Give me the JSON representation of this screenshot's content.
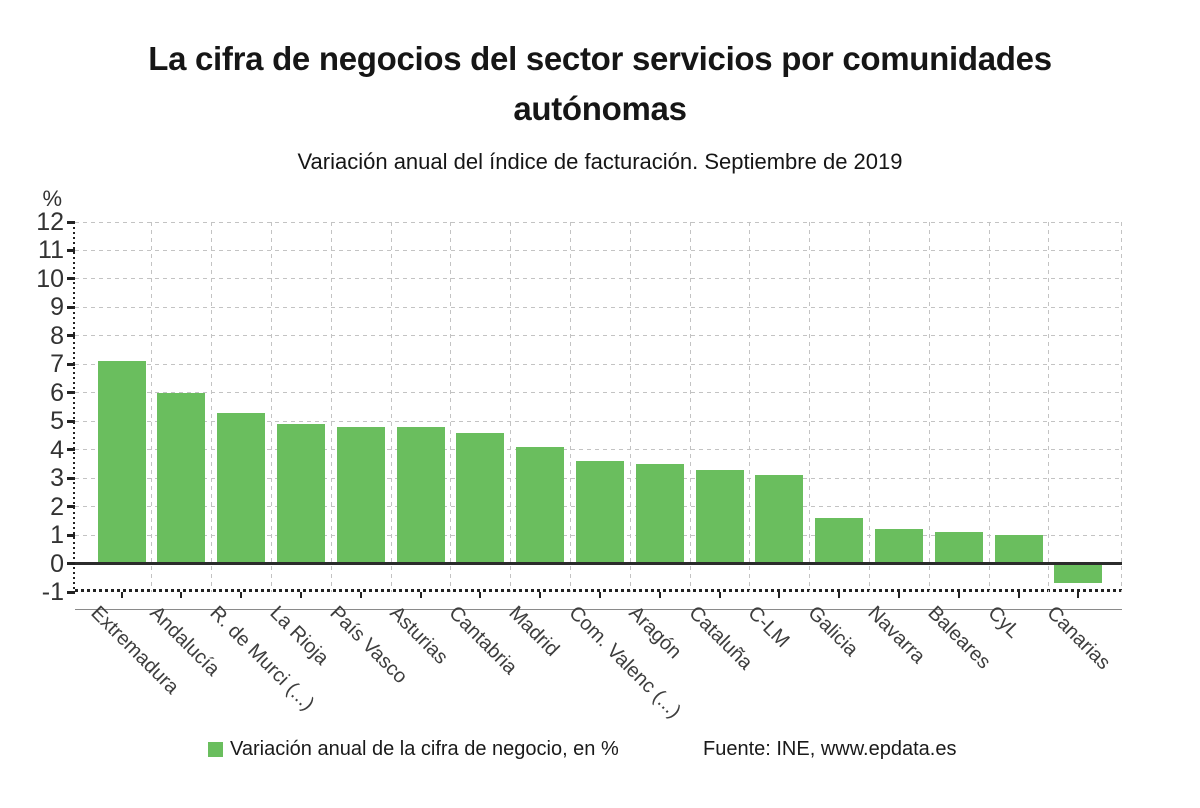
{
  "header": {
    "title_lines": [
      "La cifra de negocios del sector servicios por comunidades",
      "autónomas"
    ],
    "subtitle": "Variación anual del índice de facturación. Septiembre de 2019"
  },
  "chart_data": {
    "type": "bar",
    "title": "La cifra de negocios del sector servicios por comunidades autónomas",
    "subtitle": "Variación anual del índice de facturación. Septiembre de 2019",
    "unit_label": "%",
    "categories": [
      "Extremadura",
      "Andalucía",
      "R. de Murci (...)",
      "La Rioja",
      "País Vasco",
      "Asturias",
      "Cantabria",
      "Madrid",
      "Com. Valenc (...)",
      "Aragón",
      "Cataluña",
      "C-LM",
      "Galicia",
      "Navarra",
      "Baleares",
      "CyL",
      "Canarias"
    ],
    "values": [
      7.1,
      6.0,
      5.3,
      4.9,
      4.8,
      4.8,
      4.6,
      4.1,
      3.6,
      3.5,
      3.3,
      3.1,
      1.6,
      1.2,
      1.1,
      1.0,
      -0.7
    ],
    "series_name": "Variación anual de la cifra de negocio, en %",
    "ylim": [
      -1,
      12
    ],
    "yticks": [
      12,
      11,
      10,
      9,
      8,
      7,
      6,
      5,
      4,
      3,
      2,
      1,
      0,
      -1
    ],
    "grid": true,
    "bar_color": "#6abe5e",
    "legend_position": "bottom"
  },
  "legend": {
    "label": "Variación anual de la cifra de negocio, en %",
    "swatch_color": "#6abe5e"
  },
  "footer": {
    "source": "Fuente: INE, www.epdata.es"
  }
}
